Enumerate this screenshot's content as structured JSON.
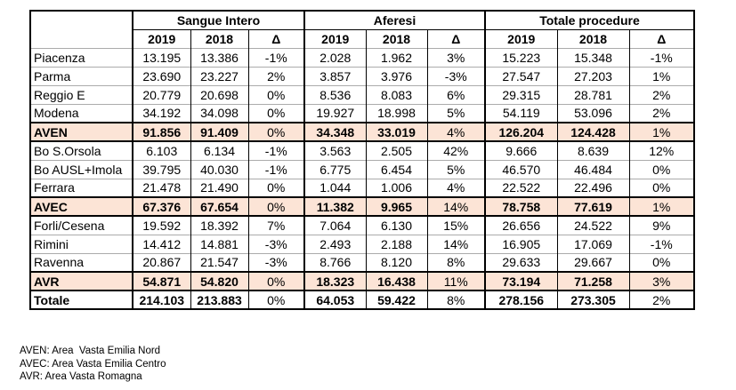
{
  "colors": {
    "highlight": "#FCE4D6",
    "border_strong": "#000000",
    "border_light": "#ABABAB"
  },
  "table": {
    "corner_label": "",
    "groups": [
      {
        "label": "Sangue Intero"
      },
      {
        "label": "Aferesi"
      },
      {
        "label": "Totale procedure"
      }
    ],
    "year_headers": [
      "2019",
      "2018",
      "Δ"
    ],
    "rows": [
      {
        "label": "Piacenza",
        "type": "normal",
        "values": [
          "13.195",
          "13.386",
          "-1%",
          "2.028",
          "1.962",
          "3%",
          "15.223",
          "15.348",
          "-1%"
        ]
      },
      {
        "label": "Parma",
        "type": "normal",
        "values": [
          "23.690",
          "23.227",
          "2%",
          "3.857",
          "3.976",
          "-3%",
          "27.547",
          "27.203",
          "1%"
        ]
      },
      {
        "label": "Reggio E",
        "type": "normal",
        "values": [
          "20.779",
          "20.698",
          "0%",
          "8.536",
          "8.083",
          "6%",
          "29.315",
          "28.781",
          "2%"
        ]
      },
      {
        "label": "Modena",
        "type": "normal",
        "values": [
          "34.192",
          "34.098",
          "0%",
          "19.927",
          "18.998",
          "5%",
          "54.119",
          "53.096",
          "2%"
        ]
      },
      {
        "label": "AVEN",
        "type": "highlight",
        "values": [
          "91.856",
          "91.409",
          "0%",
          "34.348",
          "33.019",
          "4%",
          "126.204",
          "124.428",
          "1%"
        ]
      },
      {
        "label": "Bo S.Orsola",
        "type": "normal",
        "values": [
          "6.103",
          "6.134",
          "-1%",
          "3.563",
          "2.505",
          "42%",
          "9.666",
          "8.639",
          "12%"
        ]
      },
      {
        "label": "Bo AUSL+Imola",
        "type": "normal",
        "values": [
          "39.795",
          "40.030",
          "-1%",
          "6.775",
          "6.454",
          "5%",
          "46.570",
          "46.484",
          "0%"
        ]
      },
      {
        "label": "Ferrara",
        "type": "normal",
        "values": [
          "21.478",
          "21.490",
          "0%",
          "1.044",
          "1.006",
          "4%",
          "22.522",
          "22.496",
          "0%"
        ]
      },
      {
        "label": "AVEC",
        "type": "highlight",
        "values": [
          "67.376",
          "67.654",
          "0%",
          "11.382",
          "9.965",
          "14%",
          "78.758",
          "77.619",
          "1%"
        ]
      },
      {
        "label": "Forli/Cesena",
        "type": "normal",
        "values": [
          "19.592",
          "18.392",
          "7%",
          "7.064",
          "6.130",
          "15%",
          "26.656",
          "24.522",
          "9%"
        ]
      },
      {
        "label": "Rimini",
        "type": "normal",
        "values": [
          "14.412",
          "14.881",
          "-3%",
          "2.493",
          "2.188",
          "14%",
          "16.905",
          "17.069",
          "-1%"
        ]
      },
      {
        "label": "Ravenna",
        "type": "normal",
        "values": [
          "20.867",
          "21.547",
          "-3%",
          "8.766",
          "8.120",
          "8%",
          "29.633",
          "29.667",
          "0%"
        ]
      },
      {
        "label": "AVR",
        "type": "highlight",
        "values": [
          "54.871",
          "54.820",
          "0%",
          "18.323",
          "16.438",
          "11%",
          "73.194",
          "71.258",
          "3%"
        ]
      },
      {
        "label": "Totale",
        "type": "grand",
        "values": [
          "214.103",
          "213.883",
          "0%",
          "64.053",
          "59.422",
          "8%",
          "278.156",
          "273.305",
          "2%"
        ]
      }
    ]
  },
  "footnotes": [
    "AVEN: Area  Vasta Emilia Nord",
    "AVEC: Area Vasta Emilia Centro",
    "AVR: Area Vasta Romagna"
  ]
}
